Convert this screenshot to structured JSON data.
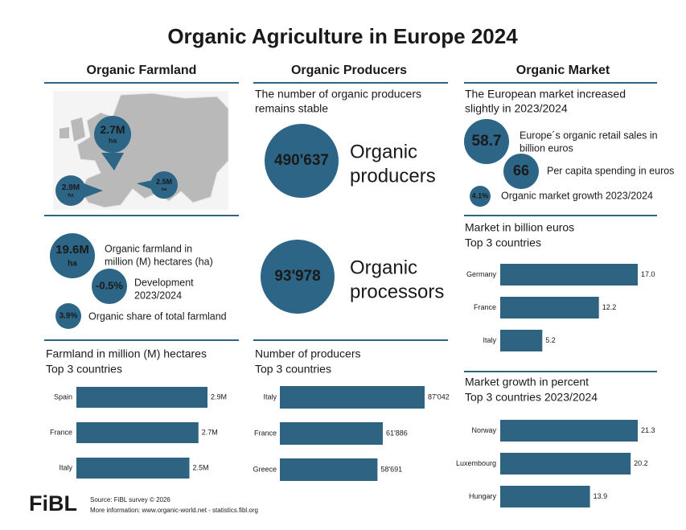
{
  "title": "Organic Agriculture in Europe 2024",
  "sections": [
    {
      "heading": "Organic Farmland"
    },
    {
      "heading": "Organic Producers"
    },
    {
      "heading": "Organic Market"
    }
  ],
  "farmland": {
    "map_labels": [
      {
        "value": "2.7M",
        "unit": "ha"
      },
      {
        "value": "2.9M",
        "unit": "ha"
      },
      {
        "value": "2.5M",
        "unit": "ha"
      }
    ],
    "stats": [
      {
        "value": "19.6M",
        "unit": "ha",
        "label": [
          "Organic farmland in",
          "million (M) hectares (ha)"
        ]
      },
      {
        "value": "-0.5%",
        "label": [
          "Development",
          "2023/2024"
        ]
      },
      {
        "value": "3.9%",
        "label": [
          "Organic share of total farmland"
        ]
      }
    ]
  },
  "producers": {
    "intro": [
      "The number of organic producers",
      "remains stable"
    ],
    "stats": [
      {
        "value": "490'637",
        "label": [
          "Organic",
          "producers"
        ]
      },
      {
        "value": "93'978",
        "label": [
          "Organic",
          "processors"
        ]
      }
    ]
  },
  "market": {
    "intro": [
      "The European market increased",
      "slightly in 2023/2024"
    ],
    "stats": [
      {
        "value": "58.7",
        "label": [
          "Europe´s organic retail sales in",
          "billion euros"
        ]
      },
      {
        "value": "66",
        "label": [
          "Per capita spending in euros"
        ]
      },
      {
        "value": "4.1%",
        "label": [
          "Organic market growth 2023/2024"
        ]
      }
    ]
  },
  "chart_data": [
    {
      "type": "bar",
      "orientation": "horizontal",
      "title": [
        "Farmland in million (M) hectares",
        "Top 3 countries"
      ],
      "categories": [
        "Spain",
        "France",
        "Italy"
      ],
      "values": [
        2.9,
        2.7,
        2.5
      ],
      "value_labels": [
        "2.9M",
        "2.7M",
        "2.5M"
      ],
      "color": "#2e6482"
    },
    {
      "type": "bar",
      "orientation": "horizontal",
      "title": [
        "Number of producers",
        "Top 3 countries"
      ],
      "categories": [
        "Italy",
        "France",
        "Greece"
      ],
      "values": [
        87042,
        61886,
        58691
      ],
      "value_labels": [
        "87'042",
        "61'886",
        "58'691"
      ],
      "color": "#2e6482"
    },
    {
      "type": "bar",
      "orientation": "horizontal",
      "title": [
        "Market in billion euros",
        "Top 3 countries"
      ],
      "categories": [
        "Germany",
        "France",
        "Italy"
      ],
      "values": [
        17.0,
        12.2,
        5.2
      ],
      "value_labels": [
        "17.0",
        "12.2",
        "5.2"
      ],
      "color": "#2e6482"
    },
    {
      "type": "bar",
      "orientation": "horizontal",
      "title": [
        "Market growth in percent",
        "Top 3 countries 2023/2024"
      ],
      "categories": [
        "Norway",
        "Luxembourg",
        "Hungary"
      ],
      "values": [
        21.3,
        20.2,
        13.9
      ],
      "color": "#2e6482"
    }
  ],
  "footer": {
    "logo": "FiBL",
    "source": "Source: FiBL survey © 2026",
    "more": "More information: www.organic-world.net - statistics.fibl.org"
  }
}
